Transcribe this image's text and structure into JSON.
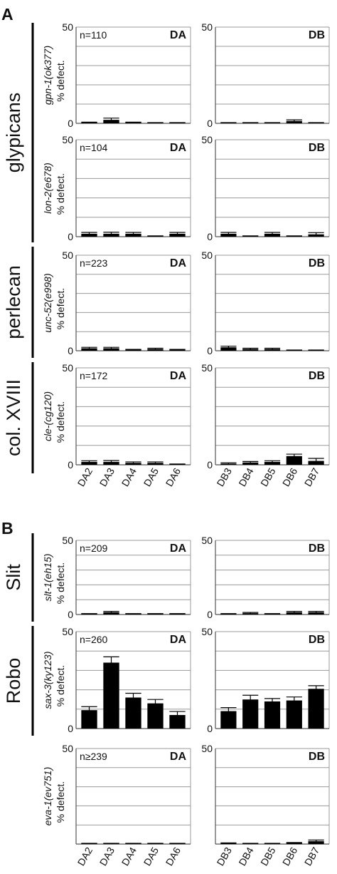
{
  "panel_labels": [
    "A",
    "B"
  ],
  "groups": [
    {
      "label": "glypicans"
    },
    {
      "label": "perlecan"
    },
    {
      "label": "col. XVIII"
    },
    {
      "label": "Slit"
    },
    {
      "label": "Robo"
    }
  ],
  "chart_data": [
    {
      "type": "bar",
      "gene": "gpn-1(ok377)",
      "ylabel": "% defect.",
      "n": "n=110",
      "neuron_class": "DA",
      "categories": [
        "DA2",
        "DA3",
        "DA4",
        "DA5",
        "DA6"
      ],
      "values": [
        0.3,
        1.8,
        0.3,
        0.2,
        0.2
      ],
      "errors": [
        0.3,
        0.9,
        0.3,
        0.2,
        0.2
      ],
      "ylim": [
        0,
        50
      ],
      "yticks": [
        "0",
        "50"
      ]
    },
    {
      "type": "bar",
      "gene": "gpn-1(ok377)",
      "ylabel": "% defect.",
      "n": "",
      "neuron_class": "DB",
      "categories": [
        "DB3",
        "DB4",
        "DB5",
        "DB6",
        "DB7"
      ],
      "values": [
        0.2,
        0.2,
        0.2,
        1.2,
        0.2
      ],
      "errors": [
        0.2,
        0.2,
        0.2,
        0.6,
        0.2
      ],
      "ylim": [
        0,
        50
      ],
      "yticks": [
        "0",
        "50"
      ]
    },
    {
      "type": "bar",
      "gene": "lon-2(e678)",
      "ylabel": "% defect.",
      "n": "n=104",
      "neuron_class": "DA",
      "categories": [
        "DA2",
        "DA3",
        "DA4",
        "DA5",
        "DA6"
      ],
      "values": [
        1.5,
        1.5,
        1.5,
        0.2,
        1.5
      ],
      "errors": [
        0.7,
        0.8,
        0.7,
        0.2,
        0.7
      ],
      "ylim": [
        0,
        50
      ],
      "yticks": [
        "0",
        "50"
      ]
    },
    {
      "type": "bar",
      "gene": "lon-2(e678)",
      "ylabel": "% defect.",
      "n": "",
      "neuron_class": "DB",
      "categories": [
        "DB3",
        "DB4",
        "DB5",
        "DB6",
        "DB7"
      ],
      "values": [
        1.5,
        0.2,
        1.5,
        0.2,
        1.2
      ],
      "errors": [
        0.7,
        0.2,
        0.7,
        0.2,
        0.9
      ],
      "ylim": [
        0,
        50
      ],
      "yticks": [
        "0",
        "50"
      ]
    },
    {
      "type": "bar",
      "gene": "unc-52(e998)",
      "ylabel": "% defect.",
      "n": "n=223",
      "neuron_class": "DA",
      "categories": [
        "DA2",
        "DA3",
        "DA4",
        "DA5",
        "DA6"
      ],
      "values": [
        1.3,
        1.3,
        0.4,
        0.9,
        0.4
      ],
      "errors": [
        0.5,
        0.5,
        0.3,
        0.4,
        0.3
      ],
      "ylim": [
        0,
        50
      ],
      "yticks": [
        "0",
        "50"
      ]
    },
    {
      "type": "bar",
      "gene": "unc-52(e998)",
      "ylabel": "% defect.",
      "n": "",
      "neuron_class": "DB",
      "categories": [
        "DB3",
        "DB4",
        "DB5",
        "DB6",
        "DB7"
      ],
      "values": [
        1.8,
        0.9,
        0.9,
        0.2,
        0.2
      ],
      "errors": [
        0.6,
        0.4,
        0.4,
        0.2,
        0.2
      ],
      "ylim": [
        0,
        50
      ],
      "yticks": [
        "0",
        "50"
      ]
    },
    {
      "type": "bar",
      "gene": "cle-(cg120)",
      "ylabel": "% defect.",
      "n": "n=172",
      "neuron_class": "DA",
      "categories": [
        "DA2",
        "DA3",
        "DA4",
        "DA5",
        "DA6"
      ],
      "values": [
        1.5,
        1.5,
        1.0,
        1.0,
        0.2
      ],
      "errors": [
        0.6,
        0.7,
        0.5,
        0.5,
        0.2
      ],
      "ylim": [
        0,
        50
      ],
      "yticks": [
        "0",
        "50"
      ]
    },
    {
      "type": "bar",
      "gene": "cle-(cg120)",
      "ylabel": "% defect.",
      "n": "",
      "neuron_class": "DB",
      "categories": [
        "DB3",
        "DB4",
        "DB5",
        "DB6",
        "DB7"
      ],
      "values": [
        0.6,
        1.2,
        1.5,
        4.5,
        2.0
      ],
      "errors": [
        0.4,
        0.5,
        0.6,
        1.0,
        1.3
      ],
      "ylim": [
        0,
        50
      ],
      "yticks": [
        "0",
        "50"
      ]
    },
    {
      "type": "bar",
      "gene": "slt-1(eh15)",
      "ylabel": "% defect.",
      "n": "n=209",
      "neuron_class": "DA",
      "categories": [
        "DA2",
        "DA3",
        "DA4",
        "DA5",
        "DA6"
      ],
      "values": [
        0.3,
        1.5,
        0.3,
        0.3,
        0.3
      ],
      "errors": [
        0.3,
        0.6,
        0.3,
        0.3,
        0.3
      ],
      "ylim": [
        0,
        50
      ],
      "yticks": [
        "0",
        "50"
      ]
    },
    {
      "type": "bar",
      "gene": "slt-1(eh15)",
      "ylabel": "% defect.",
      "n": "",
      "neuron_class": "DB",
      "categories": [
        "DB3",
        "DB4",
        "DB5",
        "DB6",
        "DB7"
      ],
      "values": [
        0.3,
        0.9,
        0.3,
        1.5,
        1.5
      ],
      "errors": [
        0.3,
        0.5,
        0.3,
        0.6,
        0.6
      ],
      "ylim": [
        0,
        50
      ],
      "yticks": [
        "0",
        "50"
      ]
    },
    {
      "type": "bar",
      "gene": "sax-3(ky123)",
      "ylabel": "% defect.",
      "n": "n=260",
      "neuron_class": "DA",
      "categories": [
        "DA2",
        "DA3",
        "DA4",
        "DA5",
        "DA6"
      ],
      "values": [
        9.5,
        34,
        16,
        13,
        7
      ],
      "errors": [
        1.8,
        3.0,
        2.2,
        2.0,
        1.8
      ],
      "ylim": [
        0,
        50
      ],
      "yticks": [
        "0",
        "50"
      ]
    },
    {
      "type": "bar",
      "gene": "sax-3(ky123)",
      "ylabel": "% defect.",
      "n": "",
      "neuron_class": "DB",
      "categories": [
        "DB3",
        "DB4",
        "DB5",
        "DB6",
        "DB7"
      ],
      "values": [
        9,
        15,
        14,
        14.5,
        20.5
      ],
      "errors": [
        1.8,
        2.2,
        1.5,
        1.8,
        1.6
      ],
      "ylim": [
        0,
        50
      ],
      "yticks": [
        "0",
        "50"
      ]
    },
    {
      "type": "bar",
      "gene": "eva-1(ev751)",
      "ylabel": "% defect.",
      "n": "n≥239",
      "neuron_class": "DA",
      "categories": [
        "DA2",
        "DA3",
        "DA4",
        "DA5",
        "DA6"
      ],
      "values": [
        0.2,
        0.2,
        0.2,
        0.2,
        0.2
      ],
      "errors": [
        0.2,
        0.2,
        0.2,
        0.2,
        0.2
      ],
      "ylim": [
        0,
        50
      ],
      "yticks": [
        "",
        "50"
      ]
    },
    {
      "type": "bar",
      "gene": "eva-1(ev751)",
      "ylabel": "% defect.",
      "n": "",
      "neuron_class": "DB",
      "categories": [
        "DB3",
        "DB4",
        "DB5",
        "DB6",
        "DB7"
      ],
      "values": [
        0.3,
        0.2,
        0.2,
        0.5,
        1.5
      ],
      "errors": [
        0.3,
        0.2,
        0.2,
        0.3,
        0.6
      ],
      "ylim": [
        0,
        50
      ],
      "yticks": [
        "",
        "50"
      ]
    }
  ]
}
